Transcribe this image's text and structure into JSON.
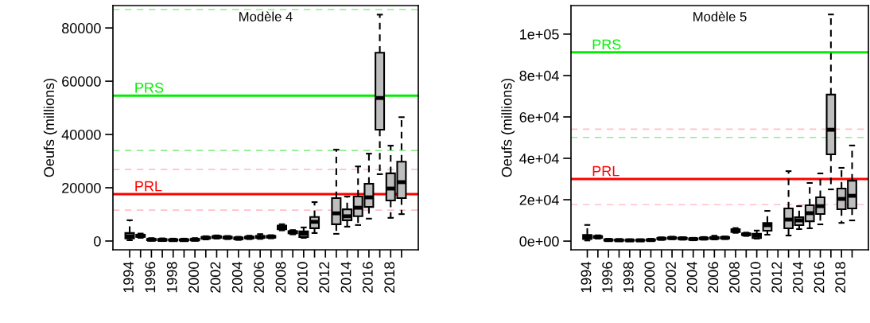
{
  "chart_data": [
    {
      "type": "box",
      "ylabel": "Oeufs (millions)",
      "annotations": [
        "Modèle 4"
      ],
      "categories": [
        "1994",
        null,
        "1996",
        null,
        "1998",
        null,
        "2000",
        null,
        "2002",
        null,
        "2004",
        null,
        "2006",
        null,
        "2008",
        null,
        "2010",
        null,
        "2012",
        null,
        "2014",
        null,
        "2016",
        null,
        "2018",
        null
      ],
      "color": "#bebebe",
      "ylim": [
        -3300,
        88400
      ],
      "yticks": [
        0,
        20000,
        40000,
        60000,
        80000
      ],
      "grid": false,
      "ref_lines": [
        {
          "axis": "y",
          "value": 86900,
          "color": "#90ee90",
          "line_style": "dashed"
        },
        {
          "axis": "y",
          "value": 54600,
          "label": "PRS",
          "color": "#00ee00",
          "line_style": "solid"
        },
        {
          "axis": "y",
          "value": 34000,
          "color": "#90ee90",
          "line_style": "dashed"
        },
        {
          "axis": "y",
          "value": 26900,
          "color": "#ffc0cb",
          "line_style": "dashed"
        },
        {
          "axis": "y",
          "value": 17600,
          "label": "PRL",
          "color": "#ff0000",
          "line_style": "solid"
        },
        {
          "axis": "y",
          "value": 11600,
          "color": "#ffc0cb",
          "line_style": "dashed"
        }
      ],
      "boxes": [
        {
          "low": 300,
          "q1": 1000,
          "median": 1800,
          "q3": 3000,
          "high": 7800
        },
        {
          "low": 1200,
          "q1": 1600,
          "median": 2000,
          "q3": 2400,
          "high": 2800
        },
        {
          "low": 100,
          "q1": 300,
          "median": 500,
          "q3": 800,
          "high": 1100
        },
        {
          "low": 50,
          "q1": 200,
          "median": 400,
          "q3": 700,
          "high": 1000
        },
        {
          "low": 50,
          "q1": 200,
          "median": 350,
          "q3": 600,
          "high": 900
        },
        {
          "low": 50,
          "q1": 200,
          "median": 350,
          "q3": 600,
          "high": 900
        },
        {
          "low": 100,
          "q1": 300,
          "median": 500,
          "q3": 800,
          "high": 1100
        },
        {
          "low": 600,
          "q1": 900,
          "median": 1200,
          "q3": 1500,
          "high": 1800
        },
        {
          "low": 900,
          "q1": 1200,
          "median": 1500,
          "q3": 1800,
          "high": 2100
        },
        {
          "low": 700,
          "q1": 1000,
          "median": 1300,
          "q3": 1600,
          "high": 1900
        },
        {
          "low": 400,
          "q1": 700,
          "median": 1000,
          "q3": 1300,
          "high": 1600
        },
        {
          "low": 700,
          "q1": 1000,
          "median": 1300,
          "q3": 1600,
          "high": 2000
        },
        {
          "low": 800,
          "q1": 1200,
          "median": 1500,
          "q3": 1900,
          "high": 2600
        },
        {
          "low": 1000,
          "q1": 1300,
          "median": 1600,
          "q3": 1900,
          "high": 2200
        },
        {
          "low": 4000,
          "q1": 4400,
          "median": 5200,
          "q3": 5800,
          "high": 6300
        },
        {
          "low": 2500,
          "q1": 2900,
          "median": 3300,
          "q3": 3700,
          "high": 4100
        },
        {
          "low": 1200,
          "q1": 1500,
          "median": 2700,
          "q3": 3600,
          "high": 5100
        },
        {
          "low": 3000,
          "q1": 4800,
          "median": 7200,
          "q3": 9000,
          "high": 14600
        },
        null,
        {
          "low": 2700,
          "q1": 6300,
          "median": 10400,
          "q3": 16100,
          "high": 34300
        },
        {
          "low": 5400,
          "q1": 7800,
          "median": 9300,
          "q3": 11900,
          "high": 16700
        },
        {
          "low": 6000,
          "q1": 9300,
          "median": 12500,
          "q3": 16700,
          "high": 28000
        },
        {
          "low": 8400,
          "q1": 12800,
          "median": 16400,
          "q3": 21500,
          "high": 32800
        },
        {
          "low": 25100,
          "q1": 41800,
          "median": 53700,
          "q3": 70700,
          "high": 85000
        },
        {
          "low": 8700,
          "q1": 15200,
          "median": 19700,
          "q3": 25400,
          "high": 35800
        },
        {
          "low": 10100,
          "q1": 16100,
          "median": 22100,
          "q3": 29800,
          "high": 46500
        }
      ]
    },
    {
      "type": "box",
      "ylabel": "Oeufs (millions)",
      "annotations": [
        "Modèle 5"
      ],
      "categories": [
        "1994",
        null,
        "1996",
        null,
        "1998",
        null,
        "2000",
        null,
        "2002",
        null,
        "2004",
        null,
        "2006",
        null,
        "2008",
        null,
        "2010",
        null,
        "2012",
        null,
        "2014",
        null,
        "2016",
        null,
        "2018",
        null
      ],
      "color": "#bebebe",
      "ylim": [
        -4200,
        113800
      ],
      "yticks": [
        {
          "value": 0,
          "label": "0e+00"
        },
        {
          "value": 20000,
          "label": "2e+04"
        },
        {
          "value": 40000,
          "label": "4e+04"
        },
        {
          "value": 60000,
          "label": "6e+04"
        },
        {
          "value": 80000,
          "label": "8e+04"
        },
        {
          "value": 100000,
          "label": "1e+05"
        }
      ],
      "grid": false,
      "ref_lines": [
        {
          "axis": "y",
          "value": 91200,
          "label": "PRS",
          "color": "#00ee00",
          "line_style": "solid"
        },
        {
          "axis": "y",
          "value": 54100,
          "color": "#ffc0cb",
          "line_style": "dashed"
        },
        {
          "axis": "y",
          "value": 50100,
          "color": "#90ee90",
          "line_style": "dashed"
        },
        {
          "axis": "y",
          "value": 30000,
          "label": "PRL",
          "color": "#ff0000",
          "line_style": "solid"
        },
        {
          "axis": "y",
          "value": 17600,
          "color": "#ffc0cb",
          "line_style": "dashed"
        }
      ],
      "boxes": [
        {
          "low": 300,
          "q1": 1000,
          "median": 1800,
          "q3": 3000,
          "high": 7800
        },
        {
          "low": 1200,
          "q1": 1600,
          "median": 2000,
          "q3": 2400,
          "high": 2800
        },
        {
          "low": 100,
          "q1": 300,
          "median": 500,
          "q3": 800,
          "high": 1100
        },
        {
          "low": 50,
          "q1": 200,
          "median": 400,
          "q3": 700,
          "high": 1000
        },
        {
          "low": 50,
          "q1": 200,
          "median": 350,
          "q3": 600,
          "high": 900
        },
        {
          "low": 50,
          "q1": 200,
          "median": 350,
          "q3": 600,
          "high": 900
        },
        {
          "low": 100,
          "q1": 300,
          "median": 500,
          "q3": 800,
          "high": 1100
        },
        {
          "low": 600,
          "q1": 900,
          "median": 1200,
          "q3": 1500,
          "high": 1800
        },
        {
          "low": 900,
          "q1": 1200,
          "median": 1500,
          "q3": 1800,
          "high": 2100
        },
        {
          "low": 700,
          "q1": 1000,
          "median": 1300,
          "q3": 1600,
          "high": 1900
        },
        {
          "low": 400,
          "q1": 700,
          "median": 1000,
          "q3": 1300,
          "high": 1600
        },
        {
          "low": 700,
          "q1": 1000,
          "median": 1300,
          "q3": 1600,
          "high": 2000
        },
        {
          "low": 800,
          "q1": 1200,
          "median": 1500,
          "q3": 1900,
          "high": 2600
        },
        {
          "low": 1000,
          "q1": 1300,
          "median": 1600,
          "q3": 1900,
          "high": 2200
        },
        {
          "low": 4000,
          "q1": 4400,
          "median": 5200,
          "q3": 5800,
          "high": 6300
        },
        {
          "low": 2500,
          "q1": 2900,
          "median": 3300,
          "q3": 3700,
          "high": 4100
        },
        {
          "low": 1200,
          "q1": 1500,
          "median": 2700,
          "q3": 3600,
          "high": 5100
        },
        {
          "low": 3100,
          "q1": 5000,
          "median": 7700,
          "q3": 8800,
          "high": 14600
        },
        null,
        {
          "low": 2700,
          "q1": 6200,
          "median": 10400,
          "q3": 15800,
          "high": 33800
        },
        {
          "low": 5800,
          "q1": 7700,
          "median": 10000,
          "q3": 11500,
          "high": 16900
        },
        {
          "low": 6200,
          "q1": 9600,
          "median": 13500,
          "q3": 17300,
          "high": 28100
        },
        {
          "low": 8100,
          "q1": 13100,
          "median": 16900,
          "q3": 21200,
          "high": 32700
        },
        {
          "low": 25000,
          "q1": 41900,
          "median": 53800,
          "q3": 70800,
          "high": 109500
        },
        {
          "low": 8800,
          "q1": 15400,
          "median": 20400,
          "q3": 25400,
          "high": 35400
        },
        {
          "low": 10000,
          "q1": 15800,
          "median": 21900,
          "q3": 29200,
          "high": 46200
        }
      ]
    }
  ]
}
